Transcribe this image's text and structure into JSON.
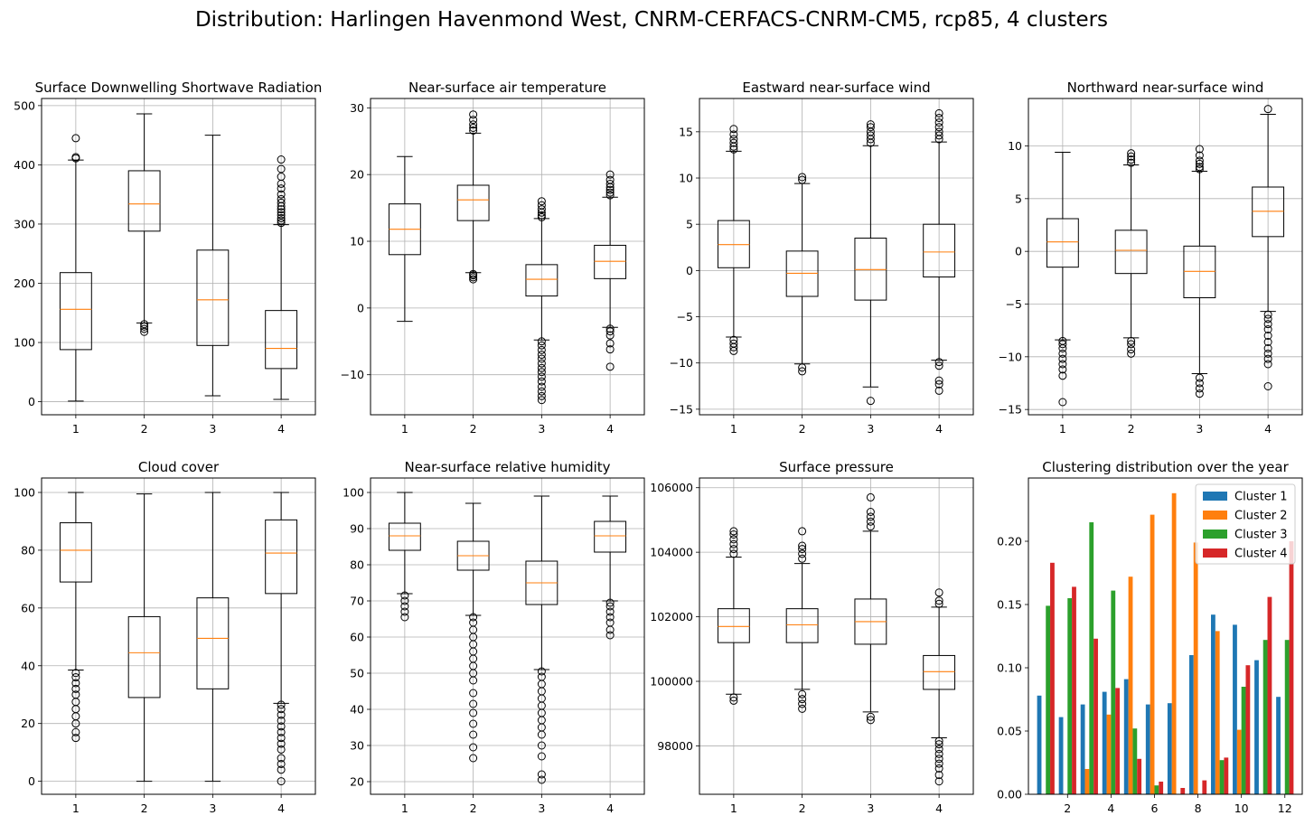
{
  "figure": {
    "title": "Distribution: Harlingen Havenmond West, CNRM-CERFACS-CNRM-CM5, rcp85, 4 clusters"
  },
  "colors": {
    "median": "#ff7f0e",
    "grid": "#b0b0b0",
    "cluster1": "#1f77b4",
    "cluster2": "#ff7f0e",
    "cluster3": "#2ca02c",
    "cluster4": "#d62728"
  },
  "chart_data": [
    {
      "type": "boxplot",
      "title": "Surface Downwelling Shortwave Radiation",
      "categories": [
        "1",
        "2",
        "3",
        "4"
      ],
      "ylim": [
        -22,
        512
      ],
      "yticks": [
        0,
        100,
        200,
        300,
        400,
        500
      ],
      "grid": true,
      "boxes": [
        {
          "whislo": 1,
          "q1": 88,
          "med": 156,
          "q3": 218,
          "whishi": 408,
          "fliers": [
            411,
            413,
            445
          ]
        },
        {
          "whislo": 133,
          "q1": 288,
          "med": 334,
          "q3": 390,
          "whishi": 486,
          "fliers": [
            118,
            123,
            127,
            131
          ]
        },
        {
          "whislo": 10,
          "q1": 95,
          "med": 172,
          "q3": 256,
          "whishi": 450,
          "fliers": []
        },
        {
          "whislo": 4,
          "q1": 56,
          "med": 90,
          "q3": 154,
          "whishi": 299,
          "fliers": [
            302,
            306,
            310,
            315,
            320,
            325,
            330,
            336,
            342,
            350,
            360,
            368,
            380,
            393,
            409
          ]
        }
      ]
    },
    {
      "type": "boxplot",
      "title": "Near-surface air temperature",
      "categories": [
        "1",
        "2",
        "3",
        "4"
      ],
      "ylim": [
        -16,
        31.4
      ],
      "yticks": [
        -10,
        0,
        10,
        20,
        30
      ],
      "grid": true,
      "boxes": [
        {
          "whislo": -2,
          "q1": 8,
          "med": 11.8,
          "q3": 15.6,
          "whishi": 22.7,
          "fliers": []
        },
        {
          "whislo": 5.3,
          "q1": 13.1,
          "med": 16.2,
          "q3": 18.4,
          "whishi": 26.2,
          "fliers": [
            4.3,
            4.6,
            4.9,
            5.1,
            26.6,
            27,
            27.5,
            28.2,
            29
          ]
        },
        {
          "whislo": -4.8,
          "q1": 1.8,
          "med": 4.3,
          "q3": 6.5,
          "whishi": 13.4,
          "fliers": [
            -13.8,
            -13.2,
            -12.5,
            -11.8,
            -11,
            -10.3,
            -9.6,
            -9,
            -8.3,
            -7.6,
            -7,
            -6.3,
            -5.6,
            -5,
            13.6,
            13.9,
            14.3,
            14.8,
            15.4,
            16
          ]
        },
        {
          "whislo": -2.9,
          "q1": 4.4,
          "med": 7,
          "q3": 9.4,
          "whishi": 16.6,
          "fliers": [
            -8.8,
            -6.2,
            -5.3,
            -4.1,
            -3.5,
            -3.1,
            16.9,
            17.3,
            17.7,
            18.1,
            18.6,
            19.2,
            20
          ]
        }
      ]
    },
    {
      "type": "boxplot",
      "title": "Eastward near-surface wind",
      "categories": [
        "1",
        "2",
        "3",
        "4"
      ],
      "ylim": [
        -15.6,
        18.6
      ],
      "yticks": [
        -15,
        -10,
        -5,
        0,
        5,
        10,
        15
      ],
      "grid": true,
      "boxes": [
        {
          "whislo": -7.2,
          "q1": 0.3,
          "med": 2.8,
          "q3": 5.4,
          "whishi": 12.9,
          "fliers": [
            -8.7,
            -8.3,
            -7.9,
            -7.5,
            13.1,
            13.4,
            13.8,
            14.2,
            14.7,
            15.3
          ]
        },
        {
          "whislo": -10.1,
          "q1": -2.8,
          "med": -0.3,
          "q3": 2.1,
          "whishi": 9.4,
          "fliers": [
            -10.9,
            -10.5,
            9.8,
            10.1
          ]
        },
        {
          "whislo": -12.6,
          "q1": -3.2,
          "med": 0.1,
          "q3": 3.5,
          "whishi": 13.5,
          "fliers": [
            -14.1,
            13.8,
            14.2,
            14.6,
            15,
            15.5,
            15.8
          ]
        },
        {
          "whislo": -9.7,
          "q1": -0.7,
          "med": 2,
          "q3": 5,
          "whishi": 13.9,
          "fliers": [
            -13,
            -12.3,
            -11.9,
            -10.3,
            -9.9,
            14.2,
            14.6,
            15,
            15.5,
            16,
            16.5,
            17
          ]
        }
      ]
    },
    {
      "type": "boxplot",
      "title": "Northward near-surface wind",
      "categories": [
        "1",
        "2",
        "3",
        "4"
      ],
      "ylim": [
        -15.5,
        14.5
      ],
      "yticks": [
        -15,
        -10,
        -5,
        0,
        5,
        10
      ],
      "grid": true,
      "boxes": [
        {
          "whislo": -8.4,
          "q1": -1.5,
          "med": 0.9,
          "q3": 3.1,
          "whishi": 9.4,
          "fliers": [
            -14.3,
            -11.8,
            -11.2,
            -10.7,
            -10.2,
            -9.7,
            -9.2,
            -8.8,
            -8.5
          ]
        },
        {
          "whislo": -8.2,
          "q1": -2.1,
          "med": 0.1,
          "q3": 2,
          "whishi": 8.2,
          "fliers": [
            -9.7,
            -9.3,
            -8.8,
            -8.5,
            8.4,
            8.7,
            9,
            9.3
          ]
        },
        {
          "whislo": -11.6,
          "q1": -4.4,
          "med": -1.9,
          "q3": 0.5,
          "whishi": 7.6,
          "fliers": [
            -13.5,
            -13,
            -12.5,
            -12,
            7.8,
            8,
            8.3,
            8.6,
            9.1,
            9.7
          ]
        },
        {
          "whislo": -5.7,
          "q1": 1.4,
          "med": 3.8,
          "q3": 6.1,
          "whishi": 13,
          "fliers": [
            -12.8,
            -10.7,
            -10.2,
            -9.7,
            -9.2,
            -8.6,
            -8,
            -7.4,
            -6.9,
            -6.4,
            -6,
            13.5
          ]
        }
      ]
    },
    {
      "type": "boxplot",
      "title": "Cloud cover",
      "categories": [
        "1",
        "2",
        "3",
        "4"
      ],
      "ylim": [
        -4.5,
        105
      ],
      "yticks": [
        0,
        20,
        40,
        60,
        80,
        100
      ],
      "grid": true,
      "boxes": [
        {
          "whislo": 38.5,
          "q1": 69,
          "med": 80,
          "q3": 89.5,
          "whishi": 100,
          "fliers": [
            15,
            17,
            20,
            22.5,
            25,
            27.5,
            30,
            32,
            34,
            36,
            37.5
          ]
        },
        {
          "whislo": 0,
          "q1": 29,
          "med": 44.5,
          "q3": 57,
          "whishi": 99.5,
          "fliers": []
        },
        {
          "whislo": 0,
          "q1": 32,
          "med": 49.5,
          "q3": 63.5,
          "whishi": 100,
          "fliers": []
        },
        {
          "whislo": 27,
          "q1": 65,
          "med": 79,
          "q3": 90.5,
          "whishi": 100,
          "fliers": [
            0,
            4,
            6,
            8,
            11,
            13,
            15,
            17,
            19,
            21,
            23,
            25,
            26.5
          ]
        }
      ]
    },
    {
      "type": "boxplot",
      "title": "Near-surface relative humidity",
      "categories": [
        "1",
        "2",
        "3",
        "4"
      ],
      "ylim": [
        16.5,
        104
      ],
      "yticks": [
        20,
        30,
        40,
        50,
        60,
        70,
        80,
        90,
        100
      ],
      "grid": true,
      "boxes": [
        {
          "whislo": 72,
          "q1": 84,
          "med": 88,
          "q3": 91.5,
          "whishi": 100,
          "fliers": [
            65.5,
            67,
            68.5,
            70,
            71.5
          ]
        },
        {
          "whislo": 66,
          "q1": 78.5,
          "med": 82.5,
          "q3": 86.5,
          "whishi": 97,
          "fliers": [
            26.5,
            29.5,
            33,
            36,
            39,
            41.5,
            44.5,
            48,
            50,
            52,
            54,
            56,
            58,
            60,
            62,
            64,
            65.5
          ]
        },
        {
          "whislo": 51,
          "q1": 69,
          "med": 75,
          "q3": 81,
          "whishi": 99,
          "fliers": [
            20.5,
            22,
            27,
            30,
            33,
            35,
            37,
            39,
            41,
            43,
            45,
            47,
            49,
            50.5
          ]
        },
        {
          "whislo": 70,
          "q1": 83.5,
          "med": 88,
          "q3": 92,
          "whishi": 99,
          "fliers": [
            60.5,
            62,
            64,
            65.5,
            67,
            68.5,
            69.5
          ]
        }
      ]
    },
    {
      "type": "boxplot",
      "title": "Surface pressure",
      "categories": [
        "1",
        "2",
        "3",
        "4"
      ],
      "ylim": [
        96500,
        106300
      ],
      "yticks": [
        98000,
        100000,
        102000,
        104000,
        106000
      ],
      "grid": true,
      "boxes": [
        {
          "whislo": 99600,
          "q1": 101200,
          "med": 101700,
          "q3": 102250,
          "whishi": 103850,
          "fliers": [
            99400,
            99500,
            103950,
            104100,
            104250,
            104400,
            104550,
            104650
          ]
        },
        {
          "whislo": 99750,
          "q1": 101200,
          "med": 101750,
          "q3": 102250,
          "whishi": 103650,
          "fliers": [
            99150,
            99300,
            99450,
            99600,
            103800,
            103950,
            104100,
            104200,
            104650
          ]
        },
        {
          "whislo": 99050,
          "q1": 101150,
          "med": 101850,
          "q3": 102550,
          "whishi": 104650,
          "fliers": [
            98800,
            98900,
            104800,
            104950,
            105100,
            105250,
            105700
          ]
        },
        {
          "whislo": 98250,
          "q1": 99750,
          "med": 100300,
          "q3": 100800,
          "whishi": 102300,
          "fliers": [
            96900,
            97100,
            97300,
            97450,
            97600,
            97750,
            97900,
            98050,
            98150,
            102400,
            102500,
            102750
          ]
        }
      ]
    },
    {
      "type": "bar",
      "title": "Clustering distribution over the year",
      "categories": [
        "1",
        "2",
        "3",
        "4",
        "5",
        "6",
        "7",
        "8",
        "9",
        "10",
        "11",
        "12"
      ],
      "xticks": [
        "2",
        "4",
        "6",
        "8",
        "10",
        "12"
      ],
      "ylim": [
        0,
        0.25
      ],
      "yticks": [
        "0.00",
        "0.05",
        "0.10",
        "0.15",
        "0.20"
      ],
      "grid": false,
      "legend_position": "top-right",
      "series": [
        {
          "name": "Cluster 1",
          "values": [
            0.078,
            0.061,
            0.071,
            0.081,
            0.091,
            0.071,
            0.072,
            0.11,
            0.142,
            0.134,
            0.106,
            0.077
          ]
        },
        {
          "name": "Cluster 2",
          "values": [
            0.0,
            0.0,
            0.02,
            0.063,
            0.172,
            0.221,
            0.238,
            0.199,
            0.129,
            0.051,
            0.0,
            0.0
          ]
        },
        {
          "name": "Cluster 3",
          "values": [
            0.149,
            0.155,
            0.215,
            0.161,
            0.052,
            0.007,
            0.0,
            0.0,
            0.027,
            0.085,
            0.122,
            0.122
          ]
        },
        {
          "name": "Cluster 4",
          "values": [
            0.183,
            0.164,
            0.123,
            0.084,
            0.028,
            0.01,
            0.005,
            0.011,
            0.029,
            0.102,
            0.156,
            0.2
          ]
        }
      ]
    }
  ]
}
